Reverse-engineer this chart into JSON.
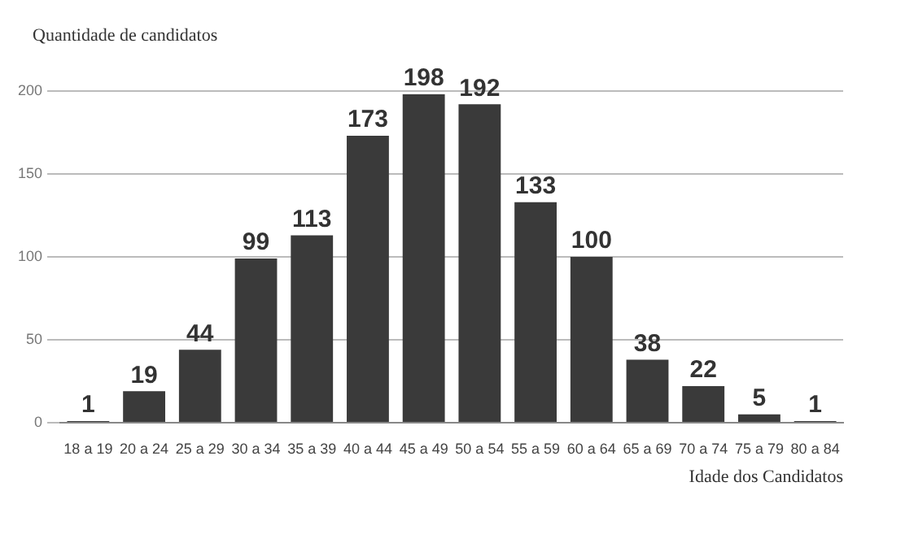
{
  "chart_data": {
    "type": "bar",
    "ylabel": "Quantidade de candidatos",
    "xlabel": "Idade dos Candidatos",
    "categories": [
      "18 a 19",
      "20 a 24",
      "25 a 29",
      "30 a 34",
      "35 a 39",
      "40 a 44",
      "45 a 49",
      "50 a 54",
      "55 a 59",
      "60 a 64",
      "65 a 69",
      "70 a 74",
      "75 a 79",
      "80 a 84"
    ],
    "values": [
      1,
      19,
      44,
      99,
      113,
      173,
      198,
      192,
      133,
      100,
      38,
      22,
      5,
      1
    ],
    "color": "#3a3a3a",
    "ylim": [
      0,
      200
    ],
    "yticks": [
      0,
      50,
      100,
      150,
      200
    ],
    "grid": "y",
    "data_labels": true,
    "legend": false
  }
}
